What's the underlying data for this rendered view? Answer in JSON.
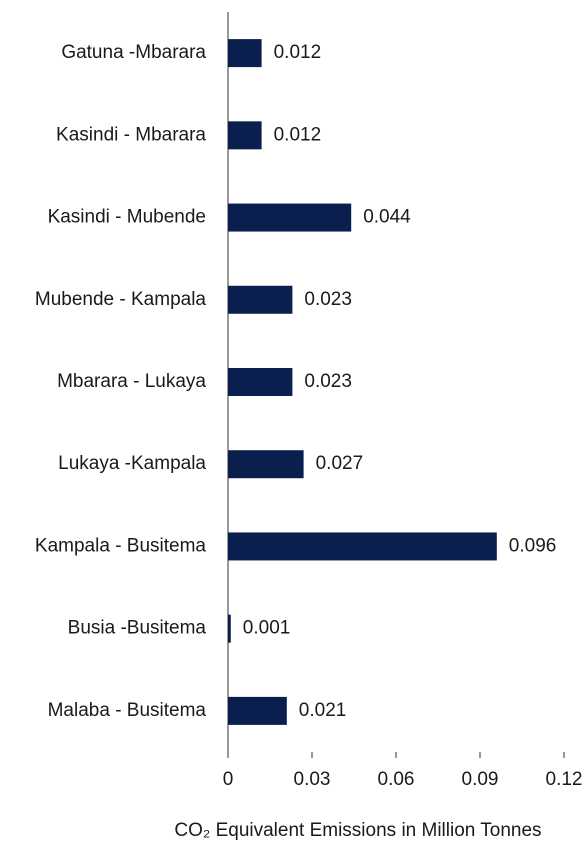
{
  "chart_data": {
    "type": "bar",
    "orientation": "horizontal",
    "categories": [
      "Gatuna -Mbarara",
      "Kasindi - Mbarara",
      "Kasindi - Mubende",
      "Mubende - Kampala",
      "Mbarara - Lukaya",
      "Lukaya -Kampala",
      "Kampala - Busitema",
      "Busia -Busitema",
      "Malaba - Busitema"
    ],
    "values": [
      0.012,
      0.012,
      0.044,
      0.023,
      0.023,
      0.027,
      0.096,
      0.001,
      0.021
    ],
    "color": "#0b1f4f",
    "xlim": [
      0,
      0.12
    ],
    "xticks": [
      0,
      0.03,
      0.06,
      0.09,
      0.12
    ],
    "x_label": "CO₂ Equivalent Emissions in Million Tonnes",
    "grid": false
  }
}
